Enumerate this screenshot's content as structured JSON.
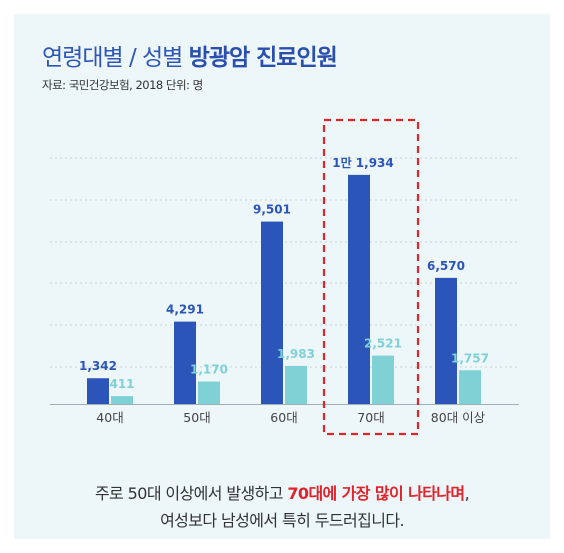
{
  "title": {
    "light": "연령대별 / 성별",
    "bold": "방광암 진료인원"
  },
  "source": "자료: 국민건강보험, 2018 단위: 명",
  "caption": {
    "line1_pre": "주로 50대 이상에서  발생하고 ",
    "line1_highlight": "70대에 가장 많이 나타나며",
    "line1_post": ",",
    "line2": "여성보다 남성에서 특히 두드러집니다."
  },
  "chart_data": {
    "type": "bar",
    "categories": [
      "40대",
      "50대",
      "60대",
      "70대",
      "80대 이상"
    ],
    "series": [
      {
        "values": [
          1342,
          4291,
          9501,
          11934,
          6570
        ],
        "color": "#2b55b8"
      },
      {
        "values": [
          411,
          1170,
          1983,
          2521,
          1757
        ],
        "color": "#7fd1d6"
      }
    ],
    "value_labels": [
      [
        "1,342",
        "4,291",
        "9,501",
        "1만 1,934",
        "6,570"
      ],
      [
        "411",
        "1,170",
        "1,983",
        "2,521",
        "1,757"
      ]
    ],
    "highlight_category": "70대",
    "highlight_color": "#e0242b",
    "ylim": [
      0,
      12500
    ],
    "grid": true
  }
}
